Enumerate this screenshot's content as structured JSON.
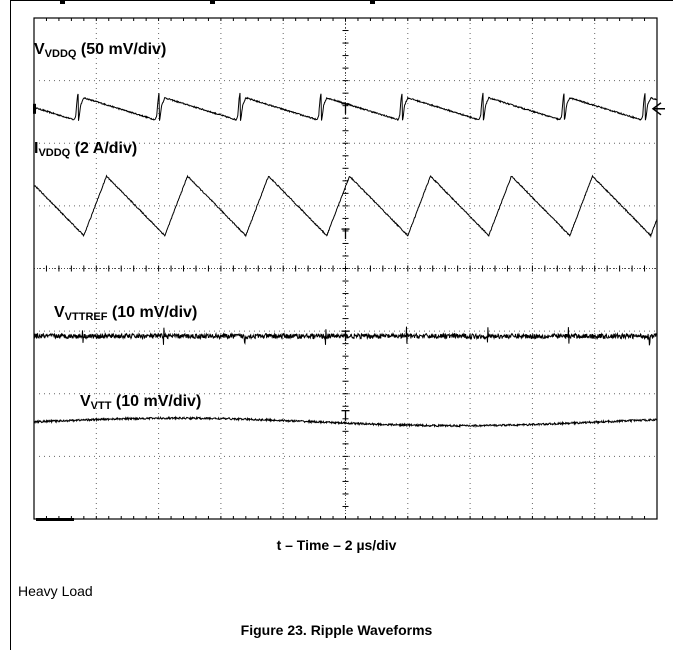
{
  "chart_data": {
    "type": "line",
    "title": "",
    "xlabel": "t – Time – 2 µs/div",
    "ylabel": "",
    "grid": true,
    "x_divisions": 10,
    "y_divisions": 8,
    "x_range_div": [
      0,
      10
    ],
    "y_range_div": [
      0,
      8
    ],
    "series": [
      {
        "name_main": "V",
        "name_sub": "VDDQ",
        "scale": "(50 mV/div)",
        "shape": "sawtooth-ripple",
        "period_div": 1.3,
        "phase_div": 0.8,
        "baseline_div": 6.55,
        "peak_to_peak_div": 0.35,
        "spike_div": 0.28,
        "noise_div": 0.01
      },
      {
        "name_main": "I",
        "name_sub": "VDDQ",
        "scale": "(2 A/div)",
        "shape": "triangle-inductor-current",
        "period_div": 1.3,
        "phase_div": 0.8,
        "baseline_div": 5.0,
        "peak_to_peak_div": 0.95,
        "rise_fraction": 0.28,
        "noise_div": 0.01
      },
      {
        "name_main": "V",
        "name_sub": "VTTREF",
        "scale": "(10 mV/div)",
        "shape": "noise",
        "baseline_div": 2.92,
        "noise_div": 0.04,
        "spike_period_div": 1.3,
        "spike_div": 0.12
      },
      {
        "name_main": "V",
        "name_sub": "VTT",
        "scale": "(10 mV/div)",
        "shape": "noise-slow-wander",
        "baseline_div": 1.55,
        "noise_div": 0.015,
        "wander_div": 0.06
      }
    ]
  },
  "figure": {
    "note": "Heavy Load",
    "caption": "Figure 23. Ripple Waveforms"
  }
}
